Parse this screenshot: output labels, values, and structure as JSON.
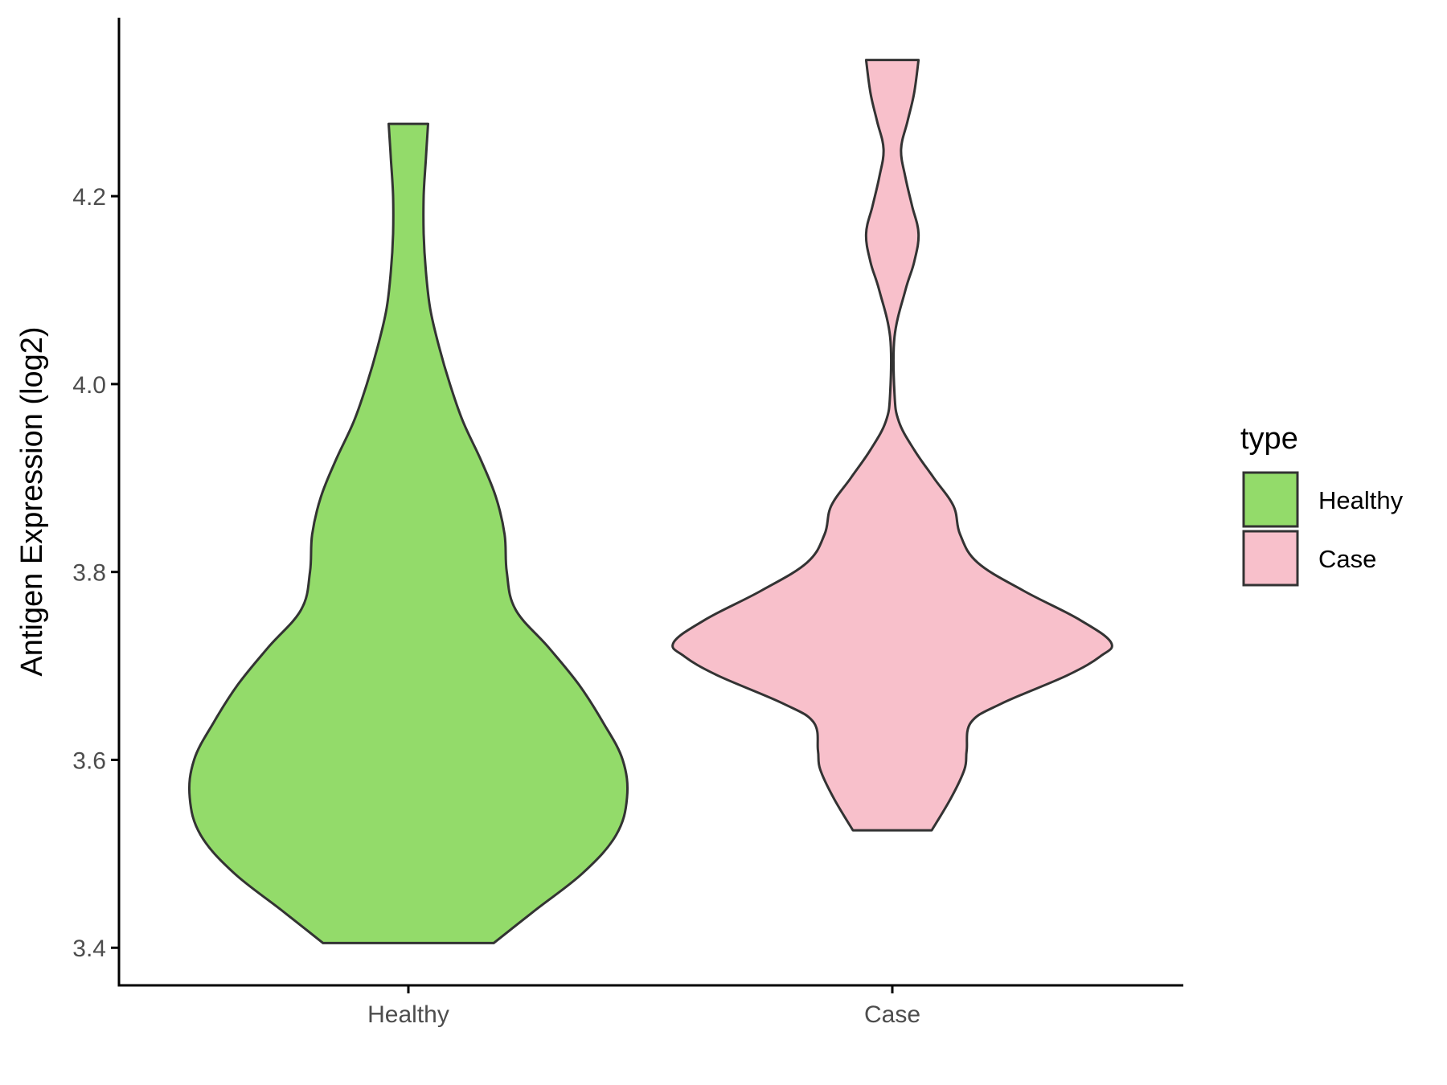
{
  "chart_data": {
    "type": "violin",
    "title": "",
    "xlabel": "",
    "ylabel": "Antigen Expression (log2)",
    "categories": [
      "Healthy",
      "Case"
    ],
    "ylim": [
      3.36,
      4.39
    ],
    "yticks": [
      3.4,
      3.6,
      3.8,
      4.0,
      4.2
    ],
    "ytick_labels": [
      "3.4",
      "3.6",
      "3.8",
      "4.0",
      "4.2"
    ],
    "legend": {
      "title": "type",
      "position": "right",
      "entries": [
        "Healthy",
        "Case"
      ]
    },
    "grid": false,
    "series": [
      {
        "name": "Healthy",
        "color": "#93db6a",
        "min": 3.405,
        "max": 4.277,
        "density": [
          [
            3.405,
            0.39
          ],
          [
            3.44,
            0.58
          ],
          [
            3.48,
            0.8
          ],
          [
            3.52,
            0.95
          ],
          [
            3.56,
            1.0
          ],
          [
            3.6,
            0.98
          ],
          [
            3.64,
            0.89
          ],
          [
            3.68,
            0.78
          ],
          [
            3.72,
            0.64
          ],
          [
            3.76,
            0.49
          ],
          [
            3.8,
            0.45
          ],
          [
            3.84,
            0.44
          ],
          [
            3.88,
            0.4
          ],
          [
            3.92,
            0.33
          ],
          [
            3.96,
            0.25
          ],
          [
            4.0,
            0.19
          ],
          [
            4.04,
            0.14
          ],
          [
            4.08,
            0.1
          ],
          [
            4.12,
            0.08
          ],
          [
            4.16,
            0.07
          ],
          [
            4.2,
            0.07
          ],
          [
            4.24,
            0.08
          ],
          [
            4.277,
            0.09
          ]
        ]
      },
      {
        "name": "Case",
        "color": "#f8c0cb",
        "min": 3.525,
        "max": 4.345,
        "density": [
          [
            3.525,
            0.18
          ],
          [
            3.56,
            0.27
          ],
          [
            3.59,
            0.33
          ],
          [
            3.61,
            0.34
          ],
          [
            3.64,
            0.36
          ],
          [
            3.66,
            0.5
          ],
          [
            3.69,
            0.8
          ],
          [
            3.71,
            0.95
          ],
          [
            3.725,
            1.0
          ],
          [
            3.75,
            0.85
          ],
          [
            3.78,
            0.6
          ],
          [
            3.81,
            0.39
          ],
          [
            3.84,
            0.31
          ],
          [
            3.87,
            0.28
          ],
          [
            3.9,
            0.19
          ],
          [
            3.93,
            0.1
          ],
          [
            3.96,
            0.03
          ],
          [
            3.99,
            0.01
          ],
          [
            4.05,
            0.01
          ],
          [
            4.1,
            0.06
          ],
          [
            4.13,
            0.1
          ],
          [
            4.16,
            0.12
          ],
          [
            4.19,
            0.09
          ],
          [
            4.22,
            0.06
          ],
          [
            4.25,
            0.04
          ],
          [
            4.28,
            0.07
          ],
          [
            4.31,
            0.1
          ],
          [
            4.345,
            0.12
          ]
        ]
      }
    ]
  }
}
